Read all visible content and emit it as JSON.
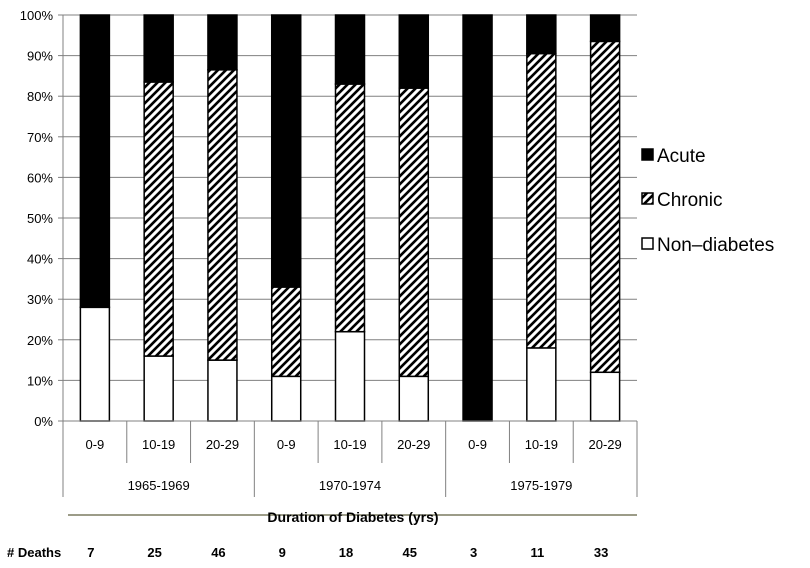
{
  "chart_data": {
    "type": "bar",
    "stacked": true,
    "percent": true,
    "group_labels": [
      "1965-1969",
      "1970-1974",
      "1975-1979"
    ],
    "categories": [
      "0-9",
      "10-19",
      "20-29",
      "0-9",
      "10-19",
      "20-29",
      "0-9",
      "10-19",
      "20-29"
    ],
    "series": [
      {
        "name": "Non–diabetes",
        "fill": "white",
        "values": [
          28,
          16,
          15,
          11,
          22,
          11,
          0,
          18,
          12
        ]
      },
      {
        "name": "Chronic",
        "fill": "hatch",
        "values": [
          0,
          67.5,
          71.5,
          22,
          61,
          71,
          0,
          72.5,
          81.5
        ]
      },
      {
        "name": "Acute",
        "fill": "black",
        "values": [
          72,
          16.5,
          13.5,
          67,
          17,
          18,
          100,
          9.5,
          6.5
        ]
      }
    ],
    "legend_order": [
      "Acute",
      "Chronic",
      "Non–diabetes"
    ],
    "legend_position": "right",
    "y_ticks": [
      "0%",
      "10%",
      "20%",
      "30%",
      "40%",
      "50%",
      "60%",
      "70%",
      "80%",
      "90%",
      "100%"
    ],
    "ylim": [
      0,
      100
    ],
    "grid": true,
    "xlabel": "Duration of Diabetes (yrs)",
    "deaths_label": "# Deaths",
    "deaths": [
      "7",
      "25",
      "46",
      "9",
      "18",
      "45",
      "3",
      "11",
      "33"
    ],
    "colors": {
      "acute": "#000000",
      "nondiabetes": "#ffffff",
      "hatch": "#000000",
      "grid": "#808080"
    }
  }
}
